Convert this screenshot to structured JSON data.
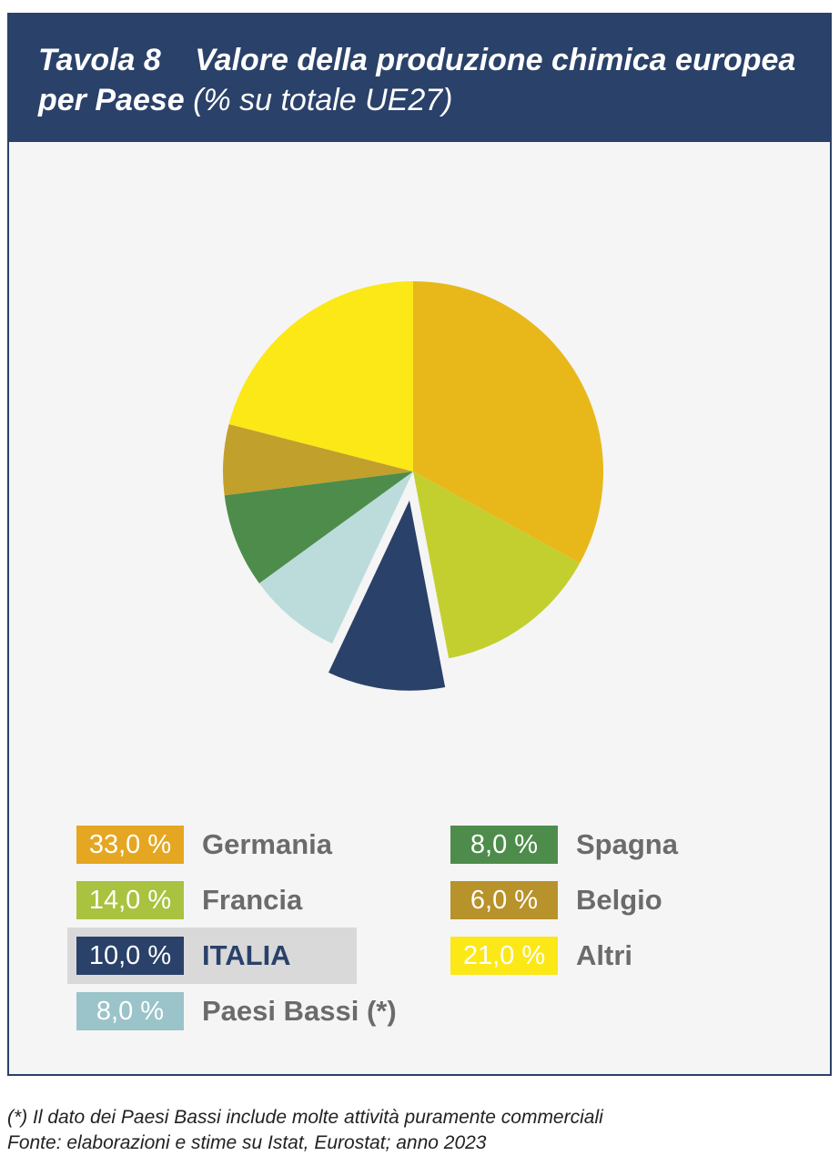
{
  "header": {
    "table_number": "Tavola 8",
    "title": "Valore della produzione chimica europea per Paese",
    "unit": "(% su totale UE27)"
  },
  "chart_data": {
    "type": "pie",
    "title": "Valore della produzione chimica europea per Paese",
    "unit": "% su totale UE27",
    "slices": [
      {
        "label": "Germania",
        "value": 33.0,
        "display": "33,0 %",
        "color": "#e8b81b"
      },
      {
        "label": "Francia",
        "value": 14.0,
        "display": "14,0 %",
        "color": "#c3cf2f"
      },
      {
        "label": "ITALIA",
        "value": 10.0,
        "display": "10,0 %",
        "color": "#2a4169",
        "exploded": true
      },
      {
        "label": "Paesi Bassi (*)",
        "value": 8.0,
        "display": "8,0 %",
        "color": "#bcdcdc"
      },
      {
        "label": "Spagna",
        "value": 8.0,
        "display": "8,0 %",
        "color": "#4e8c4c"
      },
      {
        "label": "Belgio",
        "value": 6.0,
        "display": "6,0 %",
        "color": "#c1a02c"
      },
      {
        "label": "Altri",
        "value": 21.0,
        "display": "21,0 %",
        "color": "#fbe816"
      }
    ],
    "legend_swatch_colors": {
      "Germania": "#e5a621",
      "Francia": "#a9c23f",
      "ITALIA": "#2a4169",
      "Paesi Bassi (*)": "#9ac4c9",
      "Spagna": "#4e8c4c",
      "Belgio": "#b8922a",
      "Altri": "#fbe816"
    }
  },
  "footnotes": {
    "note": "(*) Il dato dei Paesi Bassi include molte attività puramente commerciali",
    "source": "Fonte: elaborazioni e stime su Istat, Eurostat; anno 2023"
  }
}
